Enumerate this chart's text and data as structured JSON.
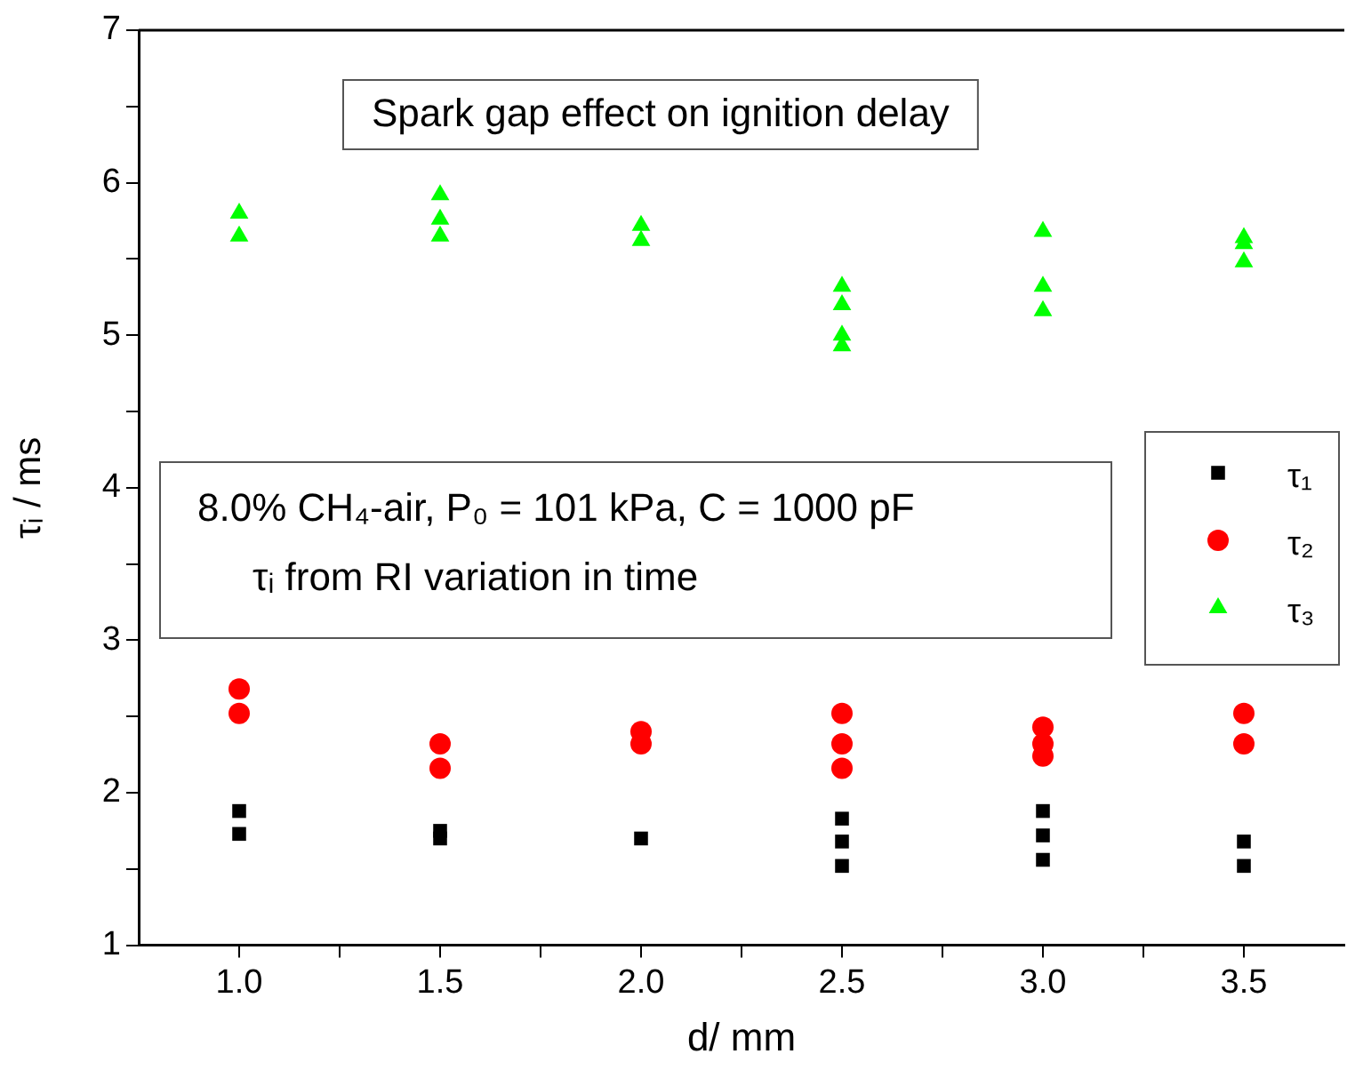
{
  "chart_data": {
    "type": "scatter",
    "title": "Spark gap effect on ignition delay",
    "xlabel": "d/ mm",
    "ylabel": "τᵢ / ms",
    "annotations": [
      "8.0% CH₄-air, P₀ = 101 kPa, C = 1000 pF",
      "τᵢ from RI variation in time"
    ],
    "legend": "right",
    "xlim": [
      0.75,
      3.75
    ],
    "xticks": [
      {
        "value": 1,
        "label": "1.0"
      },
      {
        "value": 1.25,
        "label": null
      },
      {
        "value": 1.5,
        "label": "1.5"
      },
      {
        "value": 1.75,
        "label": null
      },
      {
        "value": 2,
        "label": "2.0"
      },
      {
        "value": 2.25,
        "label": null
      },
      {
        "value": 2.5,
        "label": "2.5"
      },
      {
        "value": 2.75,
        "label": null
      },
      {
        "value": 3,
        "label": "3.0"
      },
      {
        "value": 3.25,
        "label": null
      },
      {
        "value": 3.5,
        "label": "3.5"
      }
    ],
    "ylim": [
      1,
      7
    ],
    "yticks": [
      1,
      {
        "value": 1.5,
        "label": null
      },
      2,
      {
        "value": 2.5,
        "label": null
      },
      3,
      {
        "value": 3.5,
        "label": null
      },
      4,
      {
        "value": 4.5,
        "label": null
      },
      5,
      {
        "value": 5.5,
        "label": null
      },
      6,
      {
        "value": 6.5,
        "label": null
      },
      7
    ],
    "series": [
      {
        "name": "τ₁",
        "color": "#000000",
        "marker": "square",
        "x": [
          1,
          1,
          1.5,
          1.5,
          2,
          2.5,
          2.5,
          2.5,
          3,
          3,
          3,
          3.5,
          3.5
        ],
        "values": [
          1.88,
          1.73,
          1.75,
          1.7,
          1.7,
          1.83,
          1.68,
          1.52,
          1.88,
          1.72,
          1.56,
          1.68,
          1.52
        ]
      },
      {
        "name": "τ₂",
        "color": "#ff0000",
        "marker": "circle",
        "x": [
          1,
          1,
          1.5,
          1.5,
          2,
          2,
          2.5,
          2.5,
          2.5,
          3,
          3,
          3,
          3.5,
          3.5
        ],
        "values": [
          2.68,
          2.52,
          2.32,
          2.16,
          2.4,
          2.32,
          2.52,
          2.32,
          2.16,
          2.43,
          2.32,
          2.24,
          2.52,
          2.32
        ]
      },
      {
        "name": "τ₃",
        "color": "#00ff00",
        "marker": "triangle",
        "x": [
          1,
          1,
          1.5,
          1.5,
          1.5,
          2,
          2,
          2.5,
          2.5,
          2.5,
          2.5,
          3,
          3,
          3,
          3.5,
          3.5,
          3.5
        ],
        "values": [
          5.8,
          5.65,
          5.92,
          5.76,
          5.65,
          5.72,
          5.62,
          5.32,
          5.2,
          5.0,
          4.93,
          5.68,
          5.32,
          5.16,
          5.64,
          5.6,
          5.48
        ]
      }
    ]
  }
}
